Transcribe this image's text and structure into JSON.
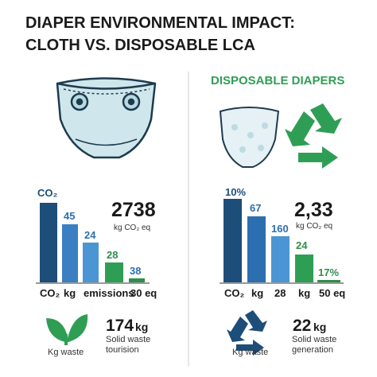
{
  "header": {
    "title_lines": [
      "DIAPER ENVIRONMENTAL IMPACT:",
      "CLOTH VS. DISPOSABLE LCA"
    ]
  },
  "cloth": {
    "bar_labels": [
      "CO₂",
      "45",
      "24",
      "28",
      "38"
    ],
    "big_stat": {
      "value": "2738",
      "unit": "kg CO₂ eq"
    },
    "axis_labels": [
      "CO₂",
      "kg",
      "emissions",
      "30 eq"
    ],
    "footer": {
      "icon_label": "Kg waste",
      "stat": "174",
      "stat_unit": "kg",
      "caption_lines": [
        "Solid waste",
        "tourision"
      ]
    }
  },
  "disposable": {
    "heading": "DISPOSABLE DIAPERS",
    "bar_labels": [
      "10%",
      "67",
      "160",
      "24",
      "17%"
    ],
    "big_stat": {
      "value": "2,33",
      "unit": "kg CO₂ eq"
    },
    "axis_labels": [
      "CO₂",
      "kg",
      "28",
      "kg",
      "50 eq"
    ],
    "footer": {
      "icon_label": "Kg waste",
      "stat": "22",
      "stat_unit": "kg",
      "caption_lines": [
        "Solid waste",
        "generation"
      ]
    }
  }
}
